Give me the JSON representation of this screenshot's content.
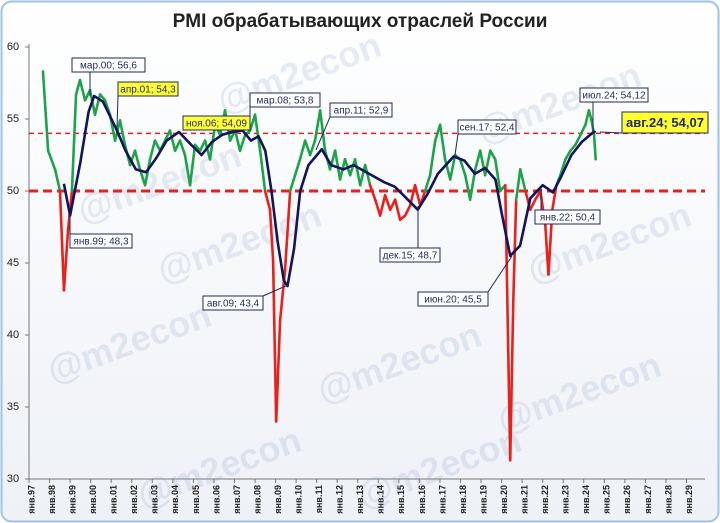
{
  "chart_data": {
    "type": "line",
    "title": "PMI обрабатывающих отраслей России",
    "watermark": "@m2econ",
    "xlim": [
      1997,
      2029.9
    ],
    "ylim": [
      30,
      60
    ],
    "yticks": [
      30,
      35,
      40,
      45,
      50,
      55,
      60
    ],
    "xticks": [
      {
        "value": 1997,
        "label": "янв.97"
      },
      {
        "value": 1998,
        "label": "янв.98"
      },
      {
        "value": 1999,
        "label": "янв.99"
      },
      {
        "value": 2000,
        "label": "янв.00"
      },
      {
        "value": 2001,
        "label": "янв.01"
      },
      {
        "value": 2002,
        "label": "янв.02"
      },
      {
        "value": 2003,
        "label": "янв.03"
      },
      {
        "value": 2004,
        "label": "янв.04"
      },
      {
        "value": 2005,
        "label": "янв.05"
      },
      {
        "value": 2006,
        "label": "янв.06"
      },
      {
        "value": 2007,
        "label": "янв.07"
      },
      {
        "value": 2008,
        "label": "янв.08"
      },
      {
        "value": 2009,
        "label": "янв.09"
      },
      {
        "value": 2010,
        "label": "янв.10"
      },
      {
        "value": 2011,
        "label": "янв.11"
      },
      {
        "value": 2012,
        "label": "янв.12"
      },
      {
        "value": 2013,
        "label": "янв.13"
      },
      {
        "value": 2014,
        "label": "янв.14"
      },
      {
        "value": 2015,
        "label": "янв.15"
      },
      {
        "value": 2016,
        "label": "янв.16"
      },
      {
        "value": 2017,
        "label": "янв.17"
      },
      {
        "value": 2018,
        "label": "янв.18"
      },
      {
        "value": 2019,
        "label": "янв.19"
      },
      {
        "value": 2020,
        "label": "янв.20"
      },
      {
        "value": 2021,
        "label": "янв.21"
      },
      {
        "value": 2022,
        "label": "янв.22"
      },
      {
        "value": 2023,
        "label": "янв.23"
      },
      {
        "value": 2024,
        "label": "янв.24"
      },
      {
        "value": 2025,
        "label": "янв.25"
      },
      {
        "value": 2026,
        "label": "янв.26"
      },
      {
        "value": 2027,
        "label": "янв.27"
      },
      {
        "value": 2028,
        "label": "янв.28"
      },
      {
        "value": 2029,
        "label": "янв.29"
      }
    ],
    "hlines": [
      {
        "value": 50,
        "color": "#e8211c",
        "width": 3,
        "dash": "9 5"
      },
      {
        "value": 54,
        "color": "#e8211c",
        "width": 1.5,
        "dash": "5 4"
      }
    ],
    "series": [
      {
        "color": "#1ea34a",
        "color_below": "#e8211c",
        "x": [
          1997.68,
          1997.93,
          1998.27,
          1998.51,
          1998.7,
          1998.9,
          1999.09,
          1999.29,
          1999.48,
          1999.73,
          1999.97,
          2000.21,
          2000.46,
          2000.7,
          2000.94,
          2001.19,
          2001.43,
          2001.67,
          2001.92,
          2002.16,
          2002.4,
          2002.65,
          2002.89,
          2003.13,
          2003.38,
          2003.62,
          2003.86,
          2004.11,
          2004.35,
          2004.59,
          2004.84,
          2005.08,
          2005.33,
          2005.57,
          2005.81,
          2006.06,
          2006.3,
          2006.54,
          2006.79,
          2007.03,
          2007.27,
          2007.52,
          2007.76,
          2008.0,
          2008.25,
          2008.49,
          2008.73,
          2008.88,
          2009.03,
          2009.22,
          2009.46,
          2009.71,
          2009.95,
          2010.19,
          2010.44,
          2010.68,
          2010.92,
          2011.17,
          2011.41,
          2011.65,
          2011.9,
          2012.14,
          2012.38,
          2012.63,
          2012.87,
          2013.12,
          2013.36,
          2013.6,
          2013.85,
          2014.09,
          2014.33,
          2014.58,
          2014.82,
          2015.06,
          2015.31,
          2015.55,
          2015.79,
          2016.04,
          2016.28,
          2016.52,
          2016.77,
          2017.01,
          2017.25,
          2017.5,
          2017.74,
          2017.98,
          2018.23,
          2018.47,
          2018.72,
          2018.96,
          2019.2,
          2019.45,
          2019.69,
          2019.93,
          2020.18,
          2020.42,
          2020.57,
          2020.71,
          2020.91,
          2021.16,
          2021.4,
          2021.64,
          2021.89,
          2022.13,
          2022.28,
          2022.47,
          2022.67,
          2022.86,
          2023.11,
          2023.35,
          2023.59,
          2023.84,
          2024.08,
          2024.25,
          2024.38,
          2024.5,
          2024.58
        ],
        "values": [
          58.3,
          52.8,
          51.5,
          50,
          43.1,
          47.3,
          50,
          56.7,
          57.7,
          56.3,
          57,
          55.3,
          56.7,
          56.3,
          55.3,
          53.5,
          54.9,
          53.2,
          51.8,
          52.8,
          51.5,
          50.4,
          52.2,
          53.5,
          52.8,
          53.5,
          54.2,
          52.8,
          53.5,
          52.5,
          50.4,
          53.2,
          52.8,
          53.5,
          52.2,
          54.6,
          53.9,
          55.6,
          53.5,
          54.2,
          52.8,
          53.9,
          54.2,
          55.3,
          52.8,
          50,
          48.7,
          45.2,
          34,
          41,
          44.5,
          50,
          51.1,
          52.2,
          53.5,
          52.5,
          53.5,
          55.6,
          52.8,
          51.5,
          52.8,
          50.8,
          52.2,
          51.1,
          52.2,
          50.4,
          51.8,
          50.4,
          49.4,
          48.3,
          49.7,
          48.7,
          49.4,
          48,
          48.3,
          49,
          50.4,
          49,
          50,
          51.1,
          53.5,
          54.6,
          52.2,
          50.8,
          52.5,
          52.2,
          51.1,
          49.4,
          51.5,
          52.8,
          51.1,
          52.8,
          52.2,
          50,
          50.4,
          31.3,
          42.4,
          49.4,
          51.5,
          50,
          48.7,
          49.4,
          50,
          47.6,
          44.2,
          48.7,
          50.4,
          51.1,
          52.2,
          52.8,
          53.2,
          53.9,
          54.6,
          55.6,
          54.9,
          53.9,
          52.2
        ]
      },
      {
        "color": "#14145a",
        "x": [
          1998.7,
          1999.0,
          1999.5,
          1999.9,
          2000.17,
          2000.6,
          2001.25,
          2001.7,
          2002.2,
          2002.7,
          2003.2,
          2003.7,
          2004.3,
          2004.9,
          2005.4,
          2005.9,
          2006.4,
          2006.83,
          2007.4,
          2007.8,
          2008.17,
          2008.5,
          2008.8,
          2009.1,
          2009.4,
          2009.58,
          2009.9,
          2010.2,
          2010.6,
          2011.25,
          2011.7,
          2012.3,
          2012.8,
          2013.3,
          2013.8,
          2014.3,
          2014.8,
          2015.3,
          2015.92,
          2016.4,
          2016.9,
          2017.67,
          2018.2,
          2018.7,
          2019.2,
          2019.7,
          2020.0,
          2020.42,
          2020.9,
          2021.4,
          2022.0,
          2022.5,
          2022.9,
          2023.4,
          2023.9,
          2024.5,
          2024.58
        ],
        "values": [
          50.5,
          48.3,
          52,
          55.5,
          56.6,
          56.2,
          54.3,
          52.8,
          51.5,
          51.3,
          52.3,
          53.5,
          54.1,
          53.2,
          52.5,
          53.4,
          53.9,
          54.09,
          54.2,
          53.5,
          53.8,
          52.8,
          50,
          46.5,
          43.8,
          43.4,
          46,
          50,
          51.8,
          52.9,
          51.8,
          51.5,
          51.8,
          51.4,
          51,
          50.6,
          50.3,
          49.6,
          48.7,
          49.8,
          51.2,
          52.4,
          52.1,
          51.2,
          51.6,
          50.8,
          48.5,
          45.5,
          46.2,
          49.5,
          50.4,
          49.9,
          51,
          52.5,
          53.4,
          54.12,
          54.07
        ]
      }
    ],
    "annotations": [
      {
        "text": "мар.00; 56,6"
      },
      {
        "text": "апр.01; 54,3",
        "highlight": true
      },
      {
        "text": "ноя.06; 54,09",
        "highlight": true
      },
      {
        "text": "мар.08; 53,8"
      },
      {
        "text": "янв.99; 48,3"
      },
      {
        "text": "авг.09; 43,4"
      },
      {
        "text": "апр.11; 52,9"
      },
      {
        "text": "сен.17; 52,4"
      },
      {
        "text": "дек.15; 48,7"
      },
      {
        "text": "июн.20; 45,5"
      },
      {
        "text": "янв.22; 50,4"
      },
      {
        "text": "июл.24; 54,12"
      },
      {
        "text": "авг.24; 54,07",
        "highlight": true,
        "bold": true
      }
    ]
  }
}
